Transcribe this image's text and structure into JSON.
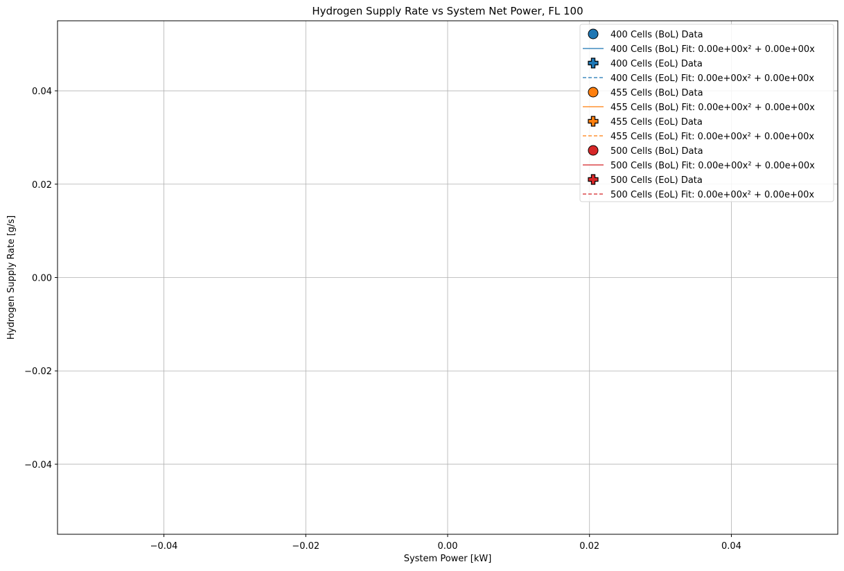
{
  "chart_data": {
    "type": "scatter",
    "title": "Hydrogen Supply Rate vs System Net Power, FL 100",
    "xlabel": "System Power [kW]",
    "ylabel": "Hydrogen Supply Rate [g/s]",
    "xlim": [
      -0.055,
      0.055
    ],
    "ylim": [
      -0.055,
      0.055
    ],
    "x_ticks": [
      -0.04,
      -0.02,
      0.0,
      0.02,
      0.04
    ],
    "x_tick_labels": [
      "−0.04",
      "−0.02",
      "0.00",
      "0.02",
      "0.04"
    ],
    "y_ticks": [
      -0.04,
      -0.02,
      0.0,
      0.02,
      0.04
    ],
    "y_tick_labels": [
      "−0.04",
      "−0.02",
      "0.00",
      "0.02",
      "0.04"
    ],
    "grid": true,
    "legend_position": "top-right",
    "series": [
      {
        "name": "400 Cells (BoL) Data",
        "kind": "scatter",
        "marker": "circle",
        "color": "#1f77b4",
        "x": [],
        "y": []
      },
      {
        "name": "400 Cells (BoL) Fit: 0.00e+00x² + 0.00e+00x",
        "kind": "line",
        "line_style": "solid",
        "color": "#1f77b4",
        "x": [],
        "y": []
      },
      {
        "name": "400 Cells (EoL) Data",
        "kind": "scatter",
        "marker": "plus",
        "color": "#1f77b4",
        "x": [],
        "y": []
      },
      {
        "name": "400 Cells (EoL) Fit: 0.00e+00x² + 0.00e+00x",
        "kind": "line",
        "line_style": "dashed",
        "color": "#1f77b4",
        "x": [],
        "y": []
      },
      {
        "name": "455 Cells (BoL) Data",
        "kind": "scatter",
        "marker": "circle",
        "color": "#ff7f0e",
        "x": [],
        "y": []
      },
      {
        "name": "455 Cells (BoL) Fit: 0.00e+00x² + 0.00e+00x",
        "kind": "line",
        "line_style": "solid",
        "color": "#ff7f0e",
        "x": [],
        "y": []
      },
      {
        "name": "455 Cells (EoL) Data",
        "kind": "scatter",
        "marker": "plus",
        "color": "#ff7f0e",
        "x": [],
        "y": []
      },
      {
        "name": "455 Cells (EoL) Fit: 0.00e+00x² + 0.00e+00x",
        "kind": "line",
        "line_style": "dashed",
        "color": "#ff7f0e",
        "x": [],
        "y": []
      },
      {
        "name": "500 Cells (BoL) Data",
        "kind": "scatter",
        "marker": "circle",
        "color": "#d62728",
        "x": [],
        "y": []
      },
      {
        "name": "500 Cells (BoL) Fit: 0.00e+00x² + 0.00e+00x",
        "kind": "line",
        "line_style": "solid",
        "color": "#d62728",
        "x": [],
        "y": []
      },
      {
        "name": "500 Cells (EoL) Data",
        "kind": "scatter",
        "marker": "plus",
        "color": "#d62728",
        "x": [],
        "y": []
      },
      {
        "name": "500 Cells (EoL) Fit: 0.00e+00x² + 0.00e+00x",
        "kind": "line",
        "line_style": "dashed",
        "color": "#d62728",
        "x": [],
        "y": []
      }
    ]
  }
}
